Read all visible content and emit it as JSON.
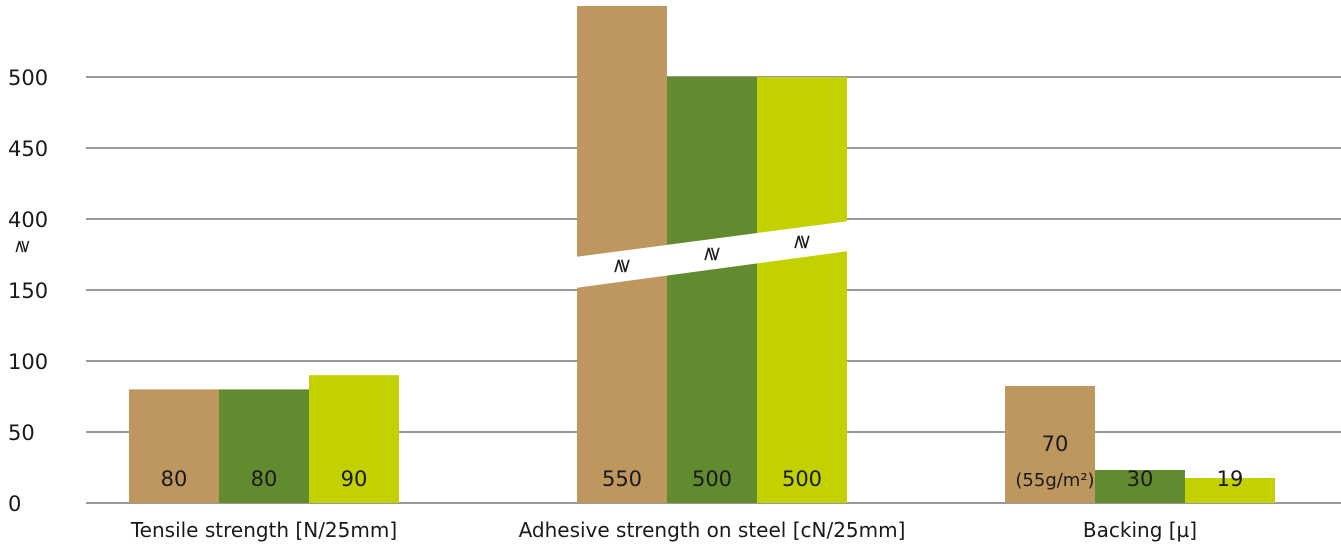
{
  "chart_data": {
    "type": "bar",
    "title": "",
    "xlabel": "",
    "ylabel": "",
    "y_ticks": [
      "0",
      "50",
      "100",
      "150",
      "400",
      "450",
      "500"
    ],
    "axis_break": {
      "lower": [
        0,
        175
      ],
      "upper": [
        375,
        550
      ],
      "symbol": "≷"
    },
    "grid": true,
    "categories": [
      "Tensile strength [N/25mm]",
      "Adhesive strength on steel [cN/25mm]",
      "Backing [µ]"
    ],
    "series": [
      {
        "values": [
          80,
          550,
          70
        ],
        "labels": [
          "80",
          "550",
          "70"
        ],
        "color": "#bd975e"
      },
      {
        "values": [
          80,
          500,
          30
        ],
        "labels": [
          "80",
          "500",
          "30"
        ],
        "color": "#628a2f"
      },
      {
        "values": [
          90,
          500,
          19
        ],
        "labels": [
          "90",
          "500",
          "19"
        ],
        "color": "#c3d100"
      }
    ],
    "annotations": [
      {
        "category": "Backing [µ]",
        "series": 0,
        "text": "(55g/m²)"
      }
    ],
    "backing_bar_heights_shown": [
      117,
      33,
      25
    ]
  }
}
